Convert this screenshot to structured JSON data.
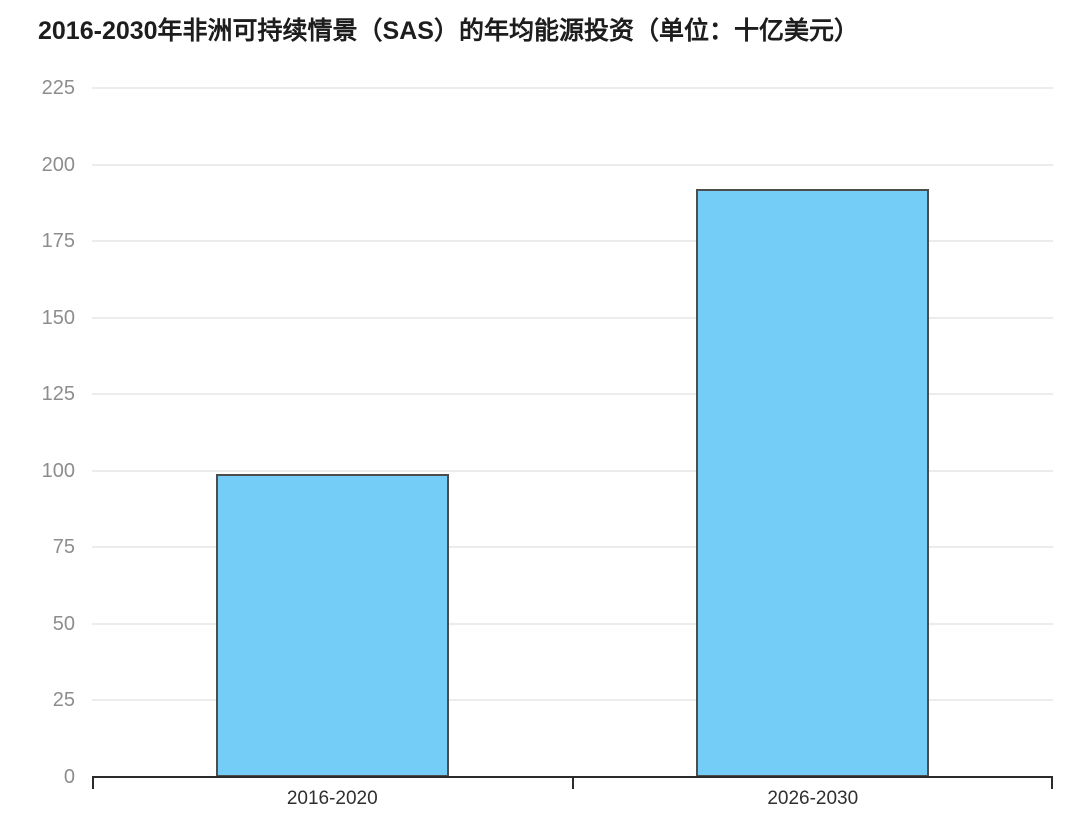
{
  "title": "2016-2030年非洲可持续情景（SAS）的年均能源投资（单位：十亿美元）",
  "chart_data": {
    "type": "bar",
    "title": "2016-2030年非洲可持续情景（SAS）的年均能源投资（单位：十亿美元）",
    "categories": [
      "2016-2020",
      "2026-2030"
    ],
    "values": [
      99,
      192
    ],
    "xlabel": "",
    "ylabel": "",
    "unit": "十亿美元",
    "ylim": [
      0,
      225
    ],
    "yticks": [
      0,
      25,
      50,
      75,
      100,
      125,
      150,
      175,
      200,
      225
    ],
    "grid": "horizontal",
    "legend": "none",
    "colors": {
      "bar_fill": "#73CDF6",
      "bar_border": "#4d4d4d",
      "grid_line": "#ececec",
      "axis_line": "#2b2b2b",
      "y_tick_label": "#8d8d8d",
      "x_tick_label": "#2f2f2f",
      "title": "#1d1d1d",
      "background": "#ffffff"
    }
  }
}
